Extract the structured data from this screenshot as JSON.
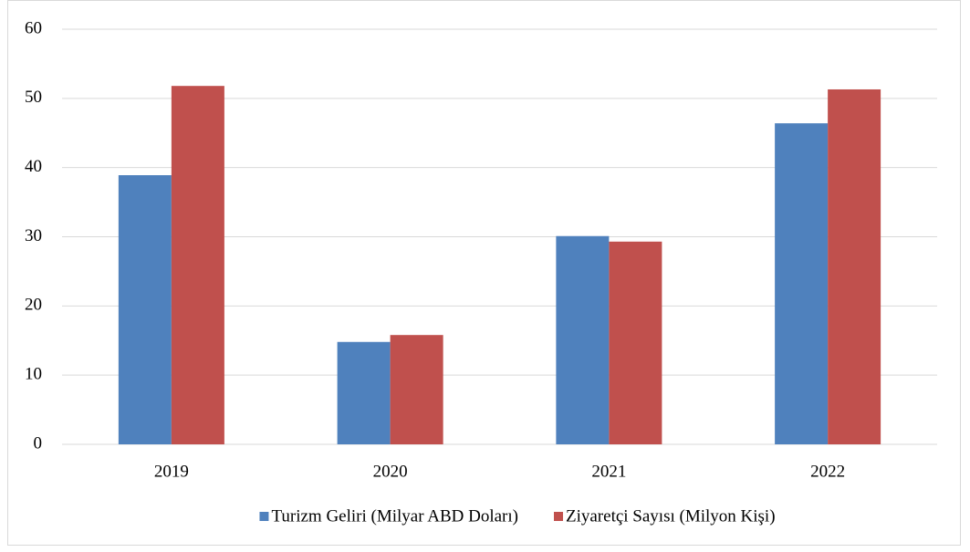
{
  "chart_data": {
    "type": "bar",
    "categories": [
      "2019",
      "2020",
      "2021",
      "2022"
    ],
    "series": [
      {
        "name": "Turizm Geliri (Milyar ABD Doları)",
        "color": "#4f81bd",
        "values": [
          38.9,
          14.8,
          30.1,
          46.4
        ]
      },
      {
        "name": "Ziyaretçi Sayısı (Milyon Kişi)",
        "color": "#c0504d",
        "values": [
          51.8,
          15.8,
          29.3,
          51.3
        ]
      }
    ],
    "ylim": [
      0,
      60
    ],
    "yticks": [
      0,
      10,
      20,
      30,
      40,
      50,
      60
    ],
    "grid": true,
    "legend": "bottom"
  }
}
